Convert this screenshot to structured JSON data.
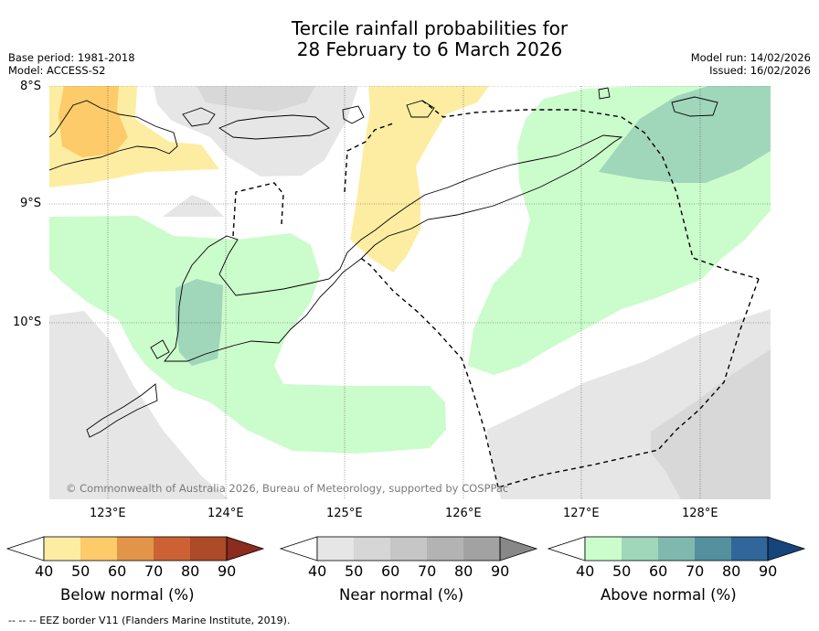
{
  "title": {
    "line1": "Tercile rainfall probabilities for",
    "line2": "28 February to 6 March 2026"
  },
  "meta": {
    "base_period": "Base period: 1981-2018",
    "model": "Model: ACCESS-S2",
    "model_run": "Model run: 14/02/2026",
    "issued": "Issued: 16/02/2026"
  },
  "axes": {
    "lat_labels": [
      "8°S",
      "9°S",
      "10°S"
    ],
    "lon_labels": [
      "123°E",
      "124°E",
      "125°E",
      "126°E",
      "127°E",
      "128°E"
    ],
    "lat_range": [
      -11.5,
      -8.0
    ],
    "lon_range": [
      122.5,
      128.6
    ]
  },
  "copyright": "© Commonwealth of Australia 2026, Bureau of Meteorology, supported by COSPPac",
  "colorbars": [
    {
      "name": "below-normal",
      "label": "Below normal (%)",
      "ticks": [
        "40",
        "50",
        "60",
        "70",
        "80",
        "90"
      ],
      "colors": [
        "#ffffff",
        "#fdeda2",
        "#fdcb6a",
        "#e29548",
        "#cc6234",
        "#ad4a28",
        "#8b2c1e"
      ]
    },
    {
      "name": "near-normal",
      "label": "Near normal (%)",
      "ticks": [
        "40",
        "50",
        "60",
        "70",
        "80",
        "90"
      ],
      "colors": [
        "#ffffff",
        "#e6e6e6",
        "#d6d6d6",
        "#c6c6c6",
        "#b3b3b3",
        "#a2a2a2",
        "#888888"
      ]
    },
    {
      "name": "above-normal",
      "label": "Above normal (%)",
      "ticks": [
        "40",
        "50",
        "60",
        "70",
        "80",
        "90"
      ],
      "colors": [
        "#ffffff",
        "#cbfccb",
        "#a0d6ba",
        "#80b8b0",
        "#54909e",
        "#30669a",
        "#15457a"
      ]
    }
  ],
  "footer": "--  --  -- EEZ border V11 (Flanders Marine Institute, 2019)."
}
